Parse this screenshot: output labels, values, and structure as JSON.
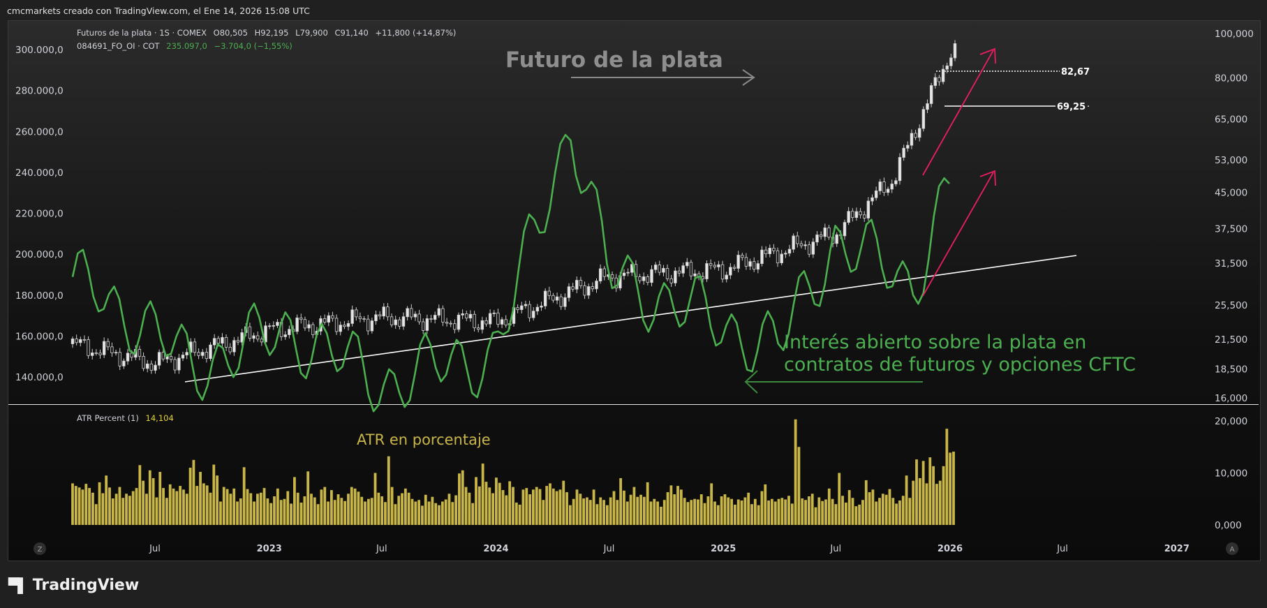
{
  "header": {
    "credit": "cmcmarkets creado con TradingView.com, el Ene 14, 2026 15:08 UTC"
  },
  "legend": {
    "series1_name": "Futuros de la plata · 1S · COMEX",
    "o_label": "O",
    "o_value": "80,505",
    "h_label": "H",
    "h_value": "92,195",
    "l_label": "L",
    "l_value": "79,900",
    "c_label": "C",
    "c_value": "91,140",
    "change": "+11,800 (+14,87%)",
    "series2_name": "084691_FO_OI · COT",
    "series2_value": "235.097,0",
    "series2_change": "−3.704,0 (−1,55%)",
    "atr_name": "ATR Percent (1)",
    "atr_value": "14,104"
  },
  "annotations": {
    "futures_title": "Futuro de la plata",
    "oi_title_line1": "Interés abierto sobre la plata en",
    "oi_title_line2": "contratos de futuros y opciones CFTC",
    "atr_title": "ATR en porcentaje",
    "level_high": "82,67",
    "level_low": "69,25"
  },
  "brand": {
    "name": "TradingView"
  },
  "colors": {
    "price_candle": "#d9d9d9",
    "open_interest": "#4caf50",
    "atr": "#c9b648",
    "trend": "#ffffff",
    "arrow": "#e91e63"
  },
  "chart_data": [
    {
      "type": "line",
      "title": "Futuros de la plata · 1S · COMEX",
      "ylim": [
        16,
        100
      ],
      "y_scale": "log",
      "right_axis_ticks": [
        "100,000",
        "80,000",
        "65,000",
        "53,000",
        "45,000",
        "37,500",
        "31,500",
        "25,500",
        "21,500",
        "18,500",
        "16,000"
      ],
      "x_ticks": [
        "Jul",
        "2023",
        "Jul",
        "2024",
        "Jul",
        "2025",
        "Jul",
        "2026",
        "Jul",
        "2027"
      ],
      "series": [
        {
          "name": "Futuros de la plata",
          "x": [
            "2022-07",
            "2023-01",
            "2023-07",
            "2024-01",
            "2024-07",
            "2025-01",
            "2025-07",
            "2025-10",
            "2026-01"
          ],
          "values": [
            19.0,
            22.5,
            24.0,
            23.5,
            29.5,
            30.5,
            36.5,
            48.0,
            91.14
          ]
        }
      ]
    },
    {
      "type": "line",
      "title": "084691_FO_OI · COT",
      "left_axis_ticks": [
        "300.000,0",
        "280.000,0",
        "260.000,0",
        "240.000,0",
        "220.000,0",
        "200.000,0",
        "180.000,0",
        "160.000,0",
        "140.000,0"
      ],
      "ylim": [
        130000,
        305000
      ],
      "series": [
        {
          "name": "084691_FO_OI",
          "x": [
            "2022-04",
            "2022-09",
            "2023-02",
            "2023-07",
            "2024-01",
            "2024-05",
            "2024-07",
            "2025-01",
            "2025-04",
            "2025-07",
            "2025-11",
            "2026-01"
          ],
          "values": [
            183000,
            145000,
            163000,
            137000,
            152000,
            264000,
            190000,
            165000,
            155000,
            208000,
            185000,
            235097
          ]
        }
      ]
    },
    {
      "type": "bar",
      "title": "ATR Percent (1)",
      "right_axis_ticks": [
        "20,000",
        "10,000",
        "0,000"
      ],
      "ylim": [
        0,
        21
      ],
      "values": [
        8.0,
        7.5,
        7.2,
        6.8,
        7.9,
        7.1,
        6.2,
        4.0,
        8.2,
        6.1,
        9.5,
        7.2,
        5.1,
        6.0,
        7.3,
        5.2,
        6.0,
        5.6,
        6.5,
        7.1,
        11.5,
        8.5,
        6.0,
        10.5,
        9.0,
        5.3,
        10.2,
        7.1,
        5.2,
        7.8,
        7.0,
        6.5,
        7.5,
        6.8,
        6.0,
        11.0,
        12.5,
        7.5,
        10.2,
        8.0,
        7.6,
        6.2,
        11.6,
        9.5,
        4.5,
        7.3,
        6.9,
        6.0,
        7.0,
        4.5,
        5.1,
        11.1,
        6.9,
        6.1,
        4.5,
        6.0,
        6.2,
        7.1,
        5.1,
        4.2,
        5.5,
        7.0,
        4.8,
        5.0,
        6.5,
        4.1,
        9.2,
        6.2,
        4.3,
        5.5,
        10.3,
        6.0,
        5.3,
        4.0,
        6.8,
        7.3,
        4.5,
        6.7,
        4.8,
        5.9,
        5.2,
        4.6,
        6.0,
        7.3,
        7.0,
        6.4,
        5.4,
        4.5,
        5.0,
        5.2,
        10.0,
        6.2,
        5.5,
        4.4,
        13.2,
        7.3,
        4.0,
        5.6,
        6.1,
        7.0,
        6.2,
        5.0,
        4.5,
        4.8,
        3.7,
        5.8,
        4.5,
        5.4,
        4.2,
        3.8,
        4.5,
        4.9,
        6.0,
        4.4,
        5.7,
        9.9,
        10.5,
        7.3,
        6.2,
        4.2,
        9.2,
        7.4,
        11.8,
        8.3,
        7.2,
        6.1,
        9.1,
        8.1,
        6.7,
        5.7,
        8.4,
        7.3,
        4.3,
        3.9,
        6.8,
        7.1,
        5.9,
        6.8,
        7.3,
        6.9,
        4.8,
        7.5,
        8.0,
        7.0,
        6.5,
        6.8,
        8.5,
        6.3,
        3.8,
        5.0,
        6.8,
        6.0,
        5.1,
        5.3,
        4.8,
        6.8,
        4.0,
        5.3,
        4.8,
        3.8,
        5.3,
        6.5,
        4.8,
        9.0,
        6.6,
        4.5,
        5.8,
        7.3,
        5.4,
        5.8,
        5.4,
        8.2,
        4.5,
        5.0,
        4.5,
        3.5,
        4.8,
        6.3,
        7.6,
        5.9,
        7.5,
        6.8,
        5.2,
        4.4,
        4.8,
        5.0,
        4.9,
        5.9,
        4.2,
        5.5,
        8.0,
        4.5,
        3.8,
        5.5,
        5.9,
        5.3,
        5.0,
        3.9,
        4.9,
        4.7,
        5.3,
        6.2,
        4.0,
        5.0,
        3.8,
        6.5,
        7.8,
        4.7,
        5.0,
        4.5,
        5.0,
        5.2,
        4.9,
        5.6,
        4.1,
        20.3,
        15.0,
        5.1,
        4.8,
        5.5,
        6.0,
        3.4,
        5.3,
        4.6,
        4.9,
        7.0,
        5.0,
        4.0,
        10.0,
        5.6,
        4.3,
        6.7,
        5.2,
        3.6,
        3.9,
        4.8,
        8.6,
        6.3,
        6.8,
        4.5,
        5.2,
        6.0,
        5.8,
        6.9,
        5.2,
        4.1,
        4.7,
        5.6,
        9.5,
        5.2,
        8.5,
        12.6,
        9.0,
        12.3,
        8.0,
        13.0,
        11.3,
        7.9,
        8.5,
        11.3,
        18.5,
        13.9,
        14.1
      ]
    }
  ]
}
